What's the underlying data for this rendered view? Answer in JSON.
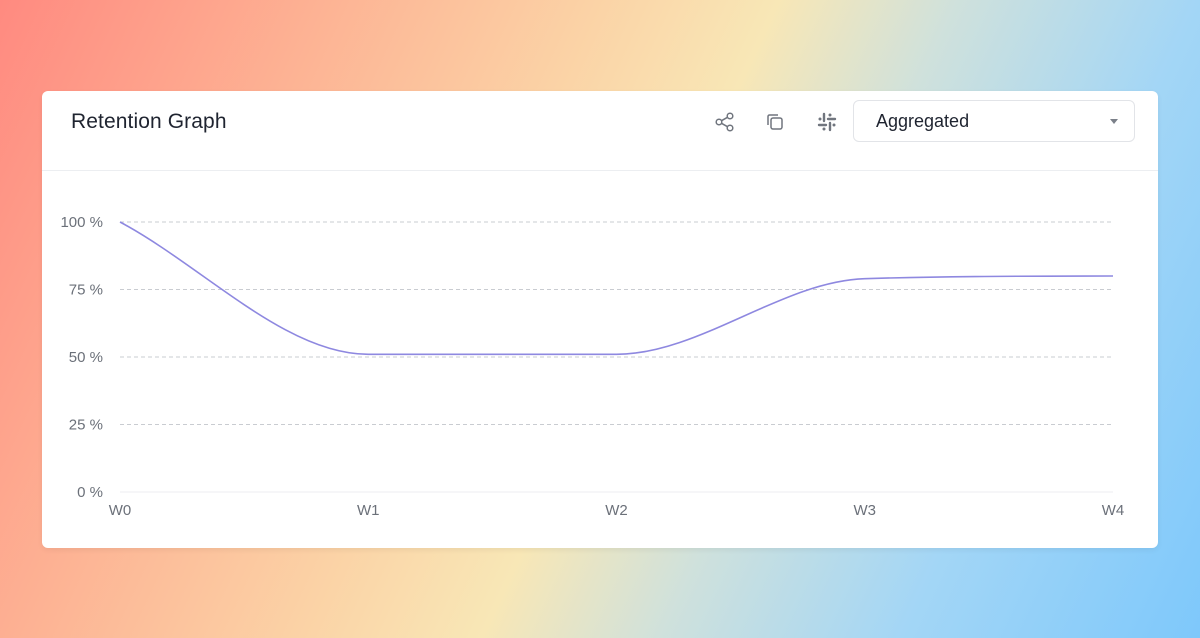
{
  "card": {
    "title": "Retention Graph",
    "actions": [
      {
        "icon": "share-icon"
      },
      {
        "icon": "copy-icon"
      },
      {
        "icon": "slack-icon"
      }
    ],
    "view_select": {
      "value": "Aggregated"
    }
  },
  "colors": {
    "line": "#8e88e0",
    "grid": "#c9ccd1",
    "axis_text": "#6b7079"
  },
  "chart_data": {
    "type": "line",
    "title": "",
    "xlabel": "",
    "ylabel": "",
    "categories": [
      "W0",
      "W1",
      "W2",
      "W3",
      "W4"
    ],
    "series": [
      {
        "values": [
          100,
          51,
          51,
          79,
          80
        ]
      }
    ],
    "ylim": [
      0,
      100
    ],
    "yticks": [
      0,
      25,
      50,
      75,
      100
    ],
    "ytick_labels": [
      "0 %",
      "25 %",
      "50 %",
      "75 %",
      "100 %"
    ],
    "grid": true,
    "legend": "none",
    "curve": "smooth"
  }
}
